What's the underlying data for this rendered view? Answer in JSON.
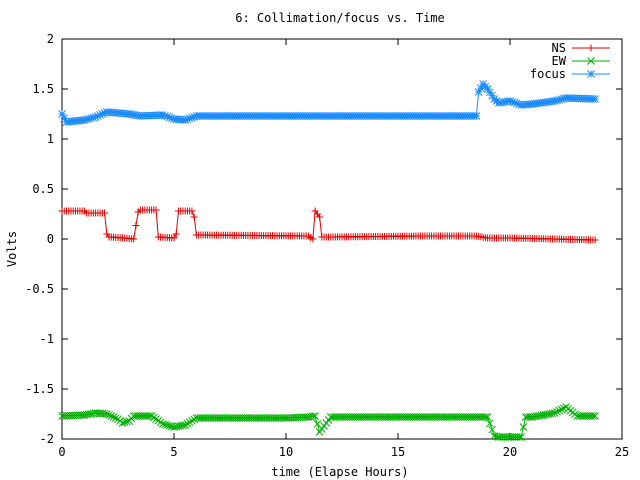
{
  "chart_data": {
    "type": "line",
    "title": "6: Collimation/focus vs. Time",
    "xlabel": "time (Elapse Hours)",
    "ylabel": "Volts",
    "xlim": [
      0,
      25
    ],
    "ylim": [
      -2,
      2
    ],
    "x_ticks": [
      0,
      5,
      10,
      15,
      20,
      25
    ],
    "x_tick_labels": [
      "0",
      "5",
      "10",
      "15",
      "20",
      "25"
    ],
    "y_ticks": [
      2,
      1.5,
      1,
      0.5,
      0,
      -0.5,
      -1,
      -1.5,
      -2
    ],
    "y_tick_labels": [
      "2",
      "1.5",
      "1",
      "0.5",
      "0",
      "-0.5",
      "-1",
      "-1.5",
      "-2"
    ],
    "grid": false,
    "legend_position": "top-right",
    "series": [
      {
        "name": "NS",
        "color": "#e00000",
        "marker": "plus",
        "x": [
          0,
          1.0,
          1.1,
          1.9,
          2.0,
          2.1,
          2.8,
          3.2,
          3.4,
          3.5,
          4.2,
          4.3,
          5.0,
          5.1,
          5.2,
          5.8,
          5.9,
          6.0,
          11.0,
          11.2,
          11.3,
          11.5,
          11.6,
          12.0,
          16.0,
          18.5,
          19.0,
          20.0,
          23.8
        ],
        "y": [
          0.28,
          0.28,
          0.26,
          0.26,
          0.05,
          0.02,
          0.01,
          0.0,
          0.27,
          0.29,
          0.29,
          0.02,
          0.01,
          0.05,
          0.28,
          0.28,
          0.22,
          0.04,
          0.03,
          0.0,
          0.28,
          0.22,
          0.02,
          0.02,
          0.03,
          0.03,
          0.01,
          0.01,
          -0.01
        ]
      },
      {
        "name": "EW",
        "color": "#00b000",
        "marker": "cross",
        "x": [
          0,
          1.0,
          1.5,
          2.0,
          2.5,
          2.7,
          3.0,
          3.2,
          4.0,
          4.2,
          4.5,
          5.0,
          5.5,
          6.0,
          10.0,
          11.0,
          11.3,
          11.5,
          12.0,
          15.0,
          18.0,
          19.0,
          19.3,
          19.5,
          20.0,
          20.5,
          20.7,
          21.0,
          22.0,
          22.5,
          23.0,
          23.8
        ],
        "y": [
          -1.77,
          -1.76,
          -1.74,
          -1.75,
          -1.8,
          -1.84,
          -1.82,
          -1.77,
          -1.77,
          -1.8,
          -1.85,
          -1.88,
          -1.86,
          -1.79,
          -1.79,
          -1.78,
          -1.77,
          -1.93,
          -1.78,
          -1.78,
          -1.78,
          -1.78,
          -1.97,
          -1.98,
          -1.98,
          -1.98,
          -1.78,
          -1.78,
          -1.74,
          -1.68,
          -1.77,
          -1.77
        ]
      },
      {
        "name": "focus",
        "color": "#1a8cff",
        "marker": "star",
        "x": [
          0,
          0.2,
          1.0,
          1.5,
          2.0,
          3.0,
          3.5,
          4.5,
          5.0,
          5.5,
          6.0,
          10.0,
          15.0,
          18.5,
          18.6,
          18.8,
          19.0,
          19.3,
          19.5,
          20.0,
          20.5,
          21.0,
          22.0,
          22.5,
          23.8
        ],
        "y": [
          1.25,
          1.17,
          1.19,
          1.22,
          1.27,
          1.25,
          1.23,
          1.24,
          1.2,
          1.19,
          1.23,
          1.23,
          1.23,
          1.23,
          1.47,
          1.55,
          1.5,
          1.4,
          1.36,
          1.38,
          1.34,
          1.35,
          1.38,
          1.41,
          1.4
        ]
      }
    ]
  }
}
